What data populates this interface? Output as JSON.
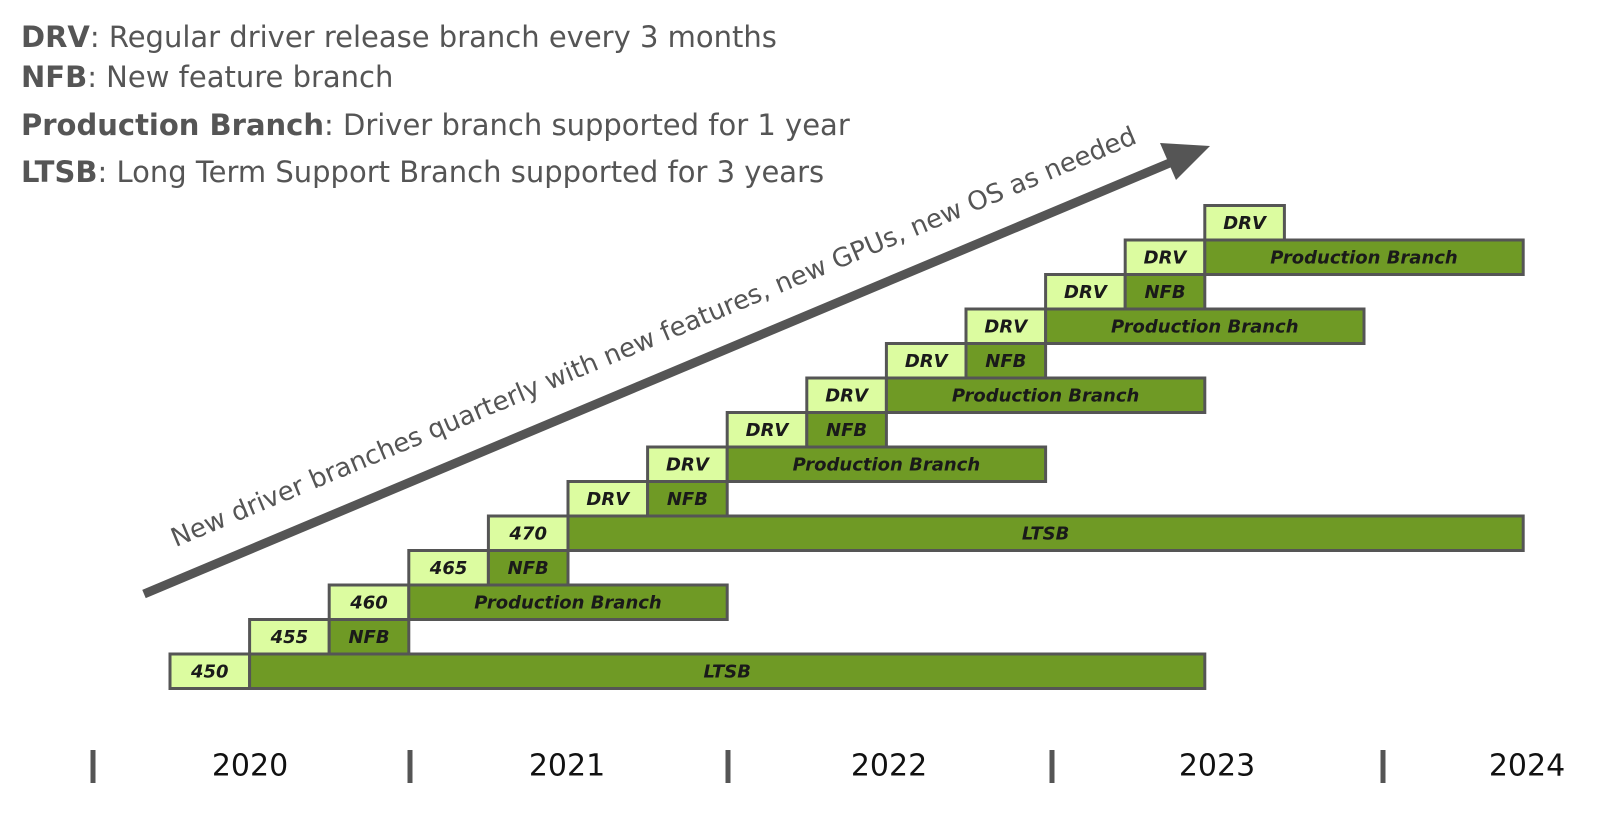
{
  "legend": [
    {
      "term": "DRV",
      "description": ": Regular driver release branch every 3 months"
    },
    {
      "term": "NFB",
      "description": ": New feature branch"
    },
    {
      "term": "Production Branch",
      "description": ": Driver branch supported for 1 year"
    },
    {
      "term": "LTSB",
      "description": ": Long Term Support Branch supported for 3 years"
    }
  ],
  "arrow_label": "New driver branches quarterly with new features, new GPUs, new OS as needed",
  "rows": [
    [
      "450",
      "LTSB"
    ],
    [
      "455",
      "NFB"
    ],
    [
      "460",
      "Production Branch"
    ],
    [
      "465",
      "NFB"
    ],
    [
      "470",
      "LTSB"
    ],
    [
      "DRV",
      "NFB"
    ],
    [
      "DRV",
      "Production Branch"
    ],
    [
      "DRV",
      "NFB"
    ],
    [
      "DRV",
      "Production Branch"
    ],
    [
      "DRV",
      "NFB"
    ],
    [
      "DRV",
      "Production Branch"
    ],
    [
      "DRV",
      "NFB"
    ],
    [
      "DRV",
      "Production Branch"
    ],
    [
      "DRV"
    ]
  ],
  "timeline": [
    "2020",
    "2021",
    "2022",
    "2023",
    "2024"
  ]
}
